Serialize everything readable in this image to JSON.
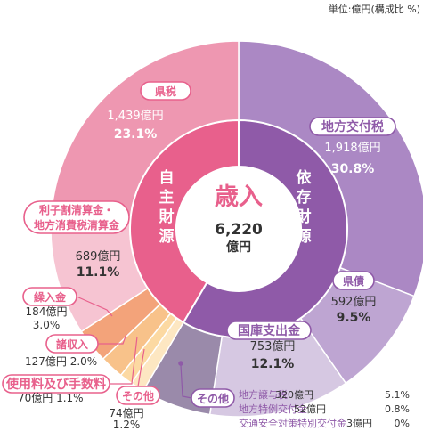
{
  "chart_data": {
    "type": "pie",
    "unit_note": "単位:億円(構成比 %)",
    "total": {
      "label": "歳入",
      "value": "6,220",
      "unit": "億円"
    },
    "groups": [
      {
        "name": "自主財源",
        "chars": [
          "自",
          "主",
          "財",
          "源"
        ],
        "color": "#e8608c"
      },
      {
        "name": "依存財源",
        "chars": [
          "依",
          "存",
          "財",
          "源"
        ],
        "color": "#8f5aa8"
      }
    ],
    "slices": [
      {
        "name": "地方交付税",
        "value": 1918,
        "value_label": "1,918億円",
        "pct": "30.8%",
        "color": "#ab88c4",
        "label_color": "#8f5aa8",
        "group": "依存財源"
      },
      {
        "name": "県債",
        "value": 592,
        "value_label": "592億円",
        "pct": "9.5%",
        "color": "#bea5d2",
        "label_color": "#8f5aa8",
        "group": "依存財源"
      },
      {
        "name": "国庫支出金",
        "value": 753,
        "value_label": "753億円",
        "pct": "12.1%",
        "color": "#d6c8e2",
        "label_color": "#8f5aa8",
        "group": "依存財源"
      },
      {
        "name": "その他",
        "value": 375,
        "value_label": "",
        "pct": "",
        "color": "#9a8aaa",
        "label_color": "#8f5aa8",
        "group": "依存財源"
      },
      {
        "name": "その他",
        "value": 74,
        "value_label": "74億円",
        "pct": "1.2%",
        "color": "#fde7c2",
        "label_color": "#e8608c",
        "group": "自主財源"
      },
      {
        "name": "使用料及び手数料",
        "value": 70,
        "value_label": "70億円",
        "pct": "1.1%",
        "color": "#fcd9a2",
        "label_color": "#e8608c",
        "group": "自主財源"
      },
      {
        "name": "諸収入",
        "value": 127,
        "value_label": "127億円",
        "pct": "2.0%",
        "color": "#f8c28a",
        "label_color": "#e8608c",
        "group": "自主財源"
      },
      {
        "name": "繰入金",
        "value": 184,
        "value_label": "184億円",
        "pct": "3.0%",
        "color": "#f3a37a",
        "label_color": "#e8608c",
        "group": "自主財源"
      },
      {
        "name": "利子割清算金・\n地方消費税清算金",
        "value": 689,
        "value_label": "689億円",
        "pct": "11.1%",
        "color": "#f6c4d2",
        "label_color": "#e8608c",
        "group": "自主財源"
      },
      {
        "name": "県税",
        "value": 1439,
        "value_label": "1,439億円",
        "pct": "23.1%",
        "color": "#ee97b1",
        "label_color": "#e8608c",
        "group": "自主財源"
      }
    ],
    "other_breakdown": [
      {
        "name": "地方譲与税",
        "value": "320億円",
        "pct": "5.1%"
      },
      {
        "name": "地方特例交付金",
        "value": "52億円",
        "pct": "0.8%"
      },
      {
        "name": "交通安全対策特別交付金",
        "value": "3億円",
        "pct": "0%"
      }
    ]
  }
}
